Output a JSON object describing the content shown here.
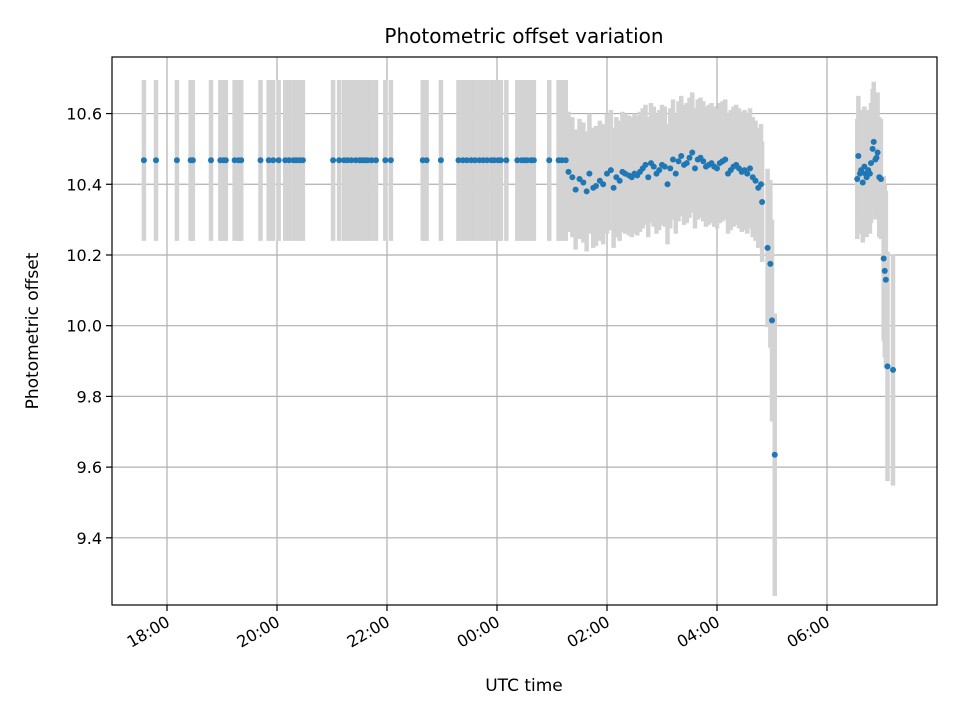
{
  "chart_data": {
    "type": "scatter",
    "title": "Photometric offset variation",
    "xlabel": "UTC time",
    "ylabel": "Photometric offset",
    "x_tick_labels": [
      "18:00",
      "20:00",
      "22:00",
      "00:00",
      "02:00",
      "04:00",
      "06:00"
    ],
    "x_tick_hours": [
      18,
      20,
      22,
      24,
      26,
      28,
      30
    ],
    "xlim_hours": [
      17.0,
      32.0
    ],
    "y_ticks": [
      9.4,
      9.6,
      9.8,
      10.0,
      10.2,
      10.4,
      10.6
    ],
    "y_tick_labels": [
      "9.4",
      "9.6",
      "9.8",
      "10.0",
      "10.2",
      "10.4",
      "10.6"
    ],
    "ylim": [
      9.21,
      10.76
    ],
    "grid": true,
    "colors": {
      "points": "#1f77b4",
      "error_bars": "#d3d3d3"
    },
    "flat_segment": {
      "value": 10.468,
      "err_low": 10.24,
      "err_high": 10.695,
      "times_hours": [
        17.58,
        17.8,
        18.18,
        18.43,
        18.47,
        18.8,
        18.97,
        19.03,
        19.07,
        19.23,
        19.3,
        19.35,
        19.7,
        19.85,
        19.93,
        20.03,
        20.15,
        20.22,
        20.3,
        20.35,
        20.41,
        20.47,
        21.02,
        21.13,
        21.22,
        21.28,
        21.35,
        21.43,
        21.5,
        21.55,
        21.6,
        21.65,
        21.72,
        21.8,
        21.97,
        22.07,
        22.65,
        22.72,
        22.98,
        23.3,
        23.38,
        23.45,
        23.53,
        23.6,
        23.68,
        23.75,
        23.82,
        23.9,
        23.95,
        24.02,
        24.07,
        24.17,
        24.37,
        24.45,
        24.5,
        24.55,
        24.62,
        24.67,
        24.95,
        25.12,
        25.18,
        25.25
      ]
    },
    "variable_segment": {
      "err_half_width": 0.17,
      "points": [
        [
          25.3,
          10.435
        ],
        [
          25.37,
          10.42
        ],
        [
          25.43,
          10.385
        ],
        [
          25.5,
          10.415
        ],
        [
          25.57,
          10.405
        ],
        [
          25.63,
          10.38
        ],
        [
          25.68,
          10.43
        ],
        [
          25.75,
          10.39
        ],
        [
          25.8,
          10.395
        ],
        [
          25.87,
          10.41
        ],
        [
          25.93,
          10.4
        ],
        [
          26.0,
          10.43
        ],
        [
          26.07,
          10.44
        ],
        [
          26.12,
          10.39
        ],
        [
          26.17,
          10.42
        ],
        [
          26.23,
          10.41
        ],
        [
          26.28,
          10.435
        ],
        [
          26.33,
          10.43
        ],
        [
          26.4,
          10.425
        ],
        [
          26.45,
          10.42
        ],
        [
          26.5,
          10.43
        ],
        [
          26.55,
          10.425
        ],
        [
          26.6,
          10.435
        ],
        [
          26.65,
          10.445
        ],
        [
          26.7,
          10.455
        ],
        [
          26.75,
          10.42
        ],
        [
          26.8,
          10.46
        ],
        [
          26.85,
          10.45
        ],
        [
          26.9,
          10.43
        ],
        [
          26.95,
          10.44
        ],
        [
          27.0,
          10.455
        ],
        [
          27.05,
          10.45
        ],
        [
          27.1,
          10.4
        ],
        [
          27.15,
          10.445
        ],
        [
          27.2,
          10.47
        ],
        [
          27.25,
          10.43
        ],
        [
          27.3,
          10.465
        ],
        [
          27.35,
          10.48
        ],
        [
          27.4,
          10.455
        ],
        [
          27.45,
          10.46
        ],
        [
          27.5,
          10.475
        ],
        [
          27.55,
          10.49
        ],
        [
          27.6,
          10.445
        ],
        [
          27.65,
          10.47
        ],
        [
          27.7,
          10.475
        ],
        [
          27.75,
          10.465
        ],
        [
          27.8,
          10.45
        ],
        [
          27.85,
          10.455
        ],
        [
          27.9,
          10.46
        ],
        [
          27.95,
          10.45
        ],
        [
          28.0,
          10.445
        ],
        [
          28.05,
          10.46
        ],
        [
          28.1,
          10.465
        ],
        [
          28.15,
          10.47
        ],
        [
          28.2,
          10.43
        ],
        [
          28.25,
          10.44
        ],
        [
          28.3,
          10.45
        ],
        [
          28.35,
          10.455
        ],
        [
          28.4,
          10.445
        ],
        [
          28.45,
          10.435
        ],
        [
          28.5,
          10.44
        ],
        [
          28.55,
          10.43
        ],
        [
          28.6,
          10.445
        ],
        [
          28.65,
          10.42
        ],
        [
          28.7,
          10.41
        ],
        [
          28.75,
          10.39
        ],
        [
          28.8,
          10.4
        ],
        [
          28.82,
          10.35
        ],
        [
          28.92,
          10.22
        ],
        [
          28.97,
          10.175
        ],
        [
          29.0,
          10.015
        ],
        [
          29.05,
          9.635
        ],
        [
          30.55,
          10.415
        ],
        [
          30.57,
          10.48
        ],
        [
          30.6,
          10.43
        ],
        [
          30.62,
          10.44
        ],
        [
          30.65,
          10.405
        ],
        [
          30.68,
          10.45
        ],
        [
          30.7,
          10.43
        ],
        [
          30.72,
          10.42
        ],
        [
          30.75,
          10.44
        ],
        [
          30.78,
          10.43
        ],
        [
          30.8,
          10.46
        ],
        [
          30.83,
          10.5
        ],
        [
          30.85,
          10.52
        ],
        [
          30.88,
          10.47
        ],
        [
          30.9,
          10.475
        ],
        [
          30.92,
          10.49
        ],
        [
          30.95,
          10.42
        ],
        [
          30.98,
          10.415
        ],
        [
          31.03,
          10.19
        ],
        [
          31.05,
          10.155
        ],
        [
          31.07,
          10.13
        ],
        [
          31.1,
          9.885
        ],
        [
          31.2,
          9.875
        ]
      ]
    }
  }
}
